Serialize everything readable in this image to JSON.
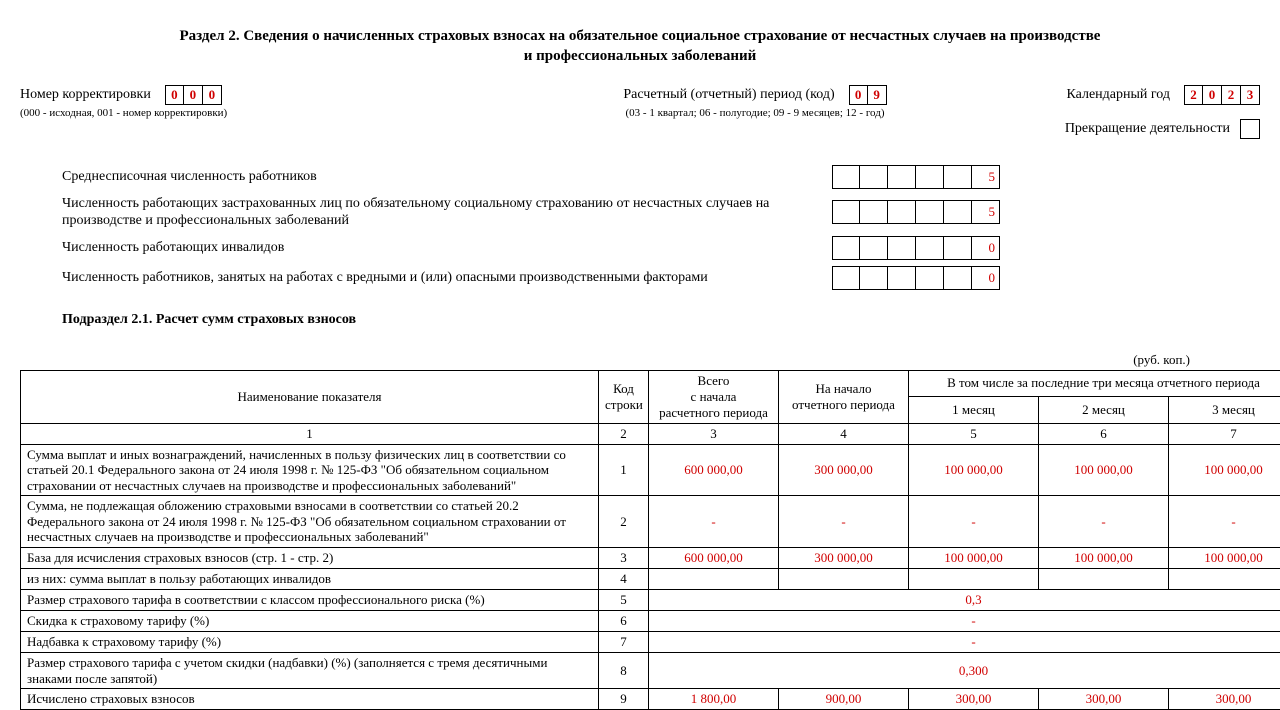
{
  "title_line1": "Раздел 2. Сведения о начисленных страховых взносах на обязательное социальное страхование от несчастных случаев на производстве",
  "title_line2": "и профессиональных заболеваний",
  "correction": {
    "label": "Номер корректировки",
    "digits": [
      "0",
      "0",
      "0"
    ],
    "note": "(000 - исходная, 001 - номер корректировки)"
  },
  "period": {
    "label": "Расчетный (отчетный) период (код)",
    "digits": [
      "0",
      "9"
    ],
    "note": "(03 - 1 квартал; 06 - полугодие; 09 - 9 месяцев; 12 - год)"
  },
  "year": {
    "label": "Календарный год",
    "digits": [
      "2",
      "0",
      "2",
      "3"
    ]
  },
  "cease": {
    "label": "Прекращение деятельности"
  },
  "counts": {
    "r1": {
      "label": "Среднесписочная численность работников",
      "cells": [
        "",
        "",
        "",
        "",
        "",
        "5"
      ]
    },
    "r2": {
      "label": "Численность работающих застрахованных лиц по обязательному социальному страхованию от несчастных случаев на производстве и профессиональных заболеваний",
      "cells": [
        "",
        "",
        "",
        "",
        "",
        "5"
      ]
    },
    "r3": {
      "label": "Численность работающих инвалидов",
      "cells": [
        "",
        "",
        "",
        "",
        "",
        "0"
      ]
    },
    "r4": {
      "label": "Численность работников, занятых на работах с вредными и (или) опасными производственными факторами",
      "cells": [
        "",
        "",
        "",
        "",
        "",
        "0"
      ]
    }
  },
  "subheading": "Подраздел 2.1. Расчет сумм страховых взносов",
  "unit_note": "(руб. коп.)",
  "table": {
    "header": {
      "name": "Наименование показателя",
      "code": "Код строки",
      "total": "Всего\nс начала\nрасчетного периода",
      "start": "На начало\nотчетного периода",
      "last3": "В том числе за последние три месяца отчетного периода",
      "m1": "1 месяц",
      "m2": "2 месяц",
      "m3": "3 месяц"
    },
    "numrow": [
      "1",
      "2",
      "3",
      "4",
      "5",
      "6",
      "7"
    ],
    "rows": [
      {
        "name": "Сумма выплат и иных вознаграждений, начисленных в пользу физических лиц в соответствии со статьей 20.1 Федерального закона от 24 июля 1998 г. № 125-ФЗ \"Об обязательном социальном страховании от несчастных случаев на производстве и профессиональных заболеваний\"",
        "code": "1",
        "v": [
          "600 000,00",
          "300 000,00",
          "100 000,00",
          "100 000,00",
          "100 000,00"
        ]
      },
      {
        "name": "Сумма, не подлежащая обложению страховыми взносами в соответствии со статьей 20.2 Федерального закона от 24 июля 1998 г. № 125-ФЗ \"Об обязательном социальном страховании от несчастных случаев на производстве и профессиональных заболеваний\"",
        "code": "2",
        "v": [
          "-",
          "-",
          "-",
          "-",
          "-"
        ]
      },
      {
        "name": "База для исчисления страховых взносов (стр. 1 - стр. 2)",
        "code": "3",
        "v": [
          "600 000,00",
          "300 000,00",
          "100 000,00",
          "100 000,00",
          "100 000,00"
        ]
      },
      {
        "name": "из них: сумма выплат в пользу работающих инвалидов",
        "code": "4",
        "v": [
          "",
          "",
          "",
          "",
          ""
        ]
      },
      {
        "name": "Размер страхового тарифа в соответствии с классом профессионального риска (%)",
        "code": "5",
        "span": "0,3"
      },
      {
        "name": "Скидка к страховому тарифу (%)",
        "code": "6",
        "span": "-"
      },
      {
        "name": "Надбавка к страховому тарифу (%)",
        "code": "7",
        "span": "-"
      },
      {
        "name": "Размер страхового тарифа с учетом скидки (надбавки) (%) (заполняется с тремя десятичными знаками после запятой)",
        "code": "8",
        "span": "0,300"
      },
      {
        "name": "Исчислено страховых взносов",
        "code": "9",
        "v": [
          "1 800,00",
          "900,00",
          "300,00",
          "300,00",
          "300,00"
        ]
      }
    ]
  }
}
